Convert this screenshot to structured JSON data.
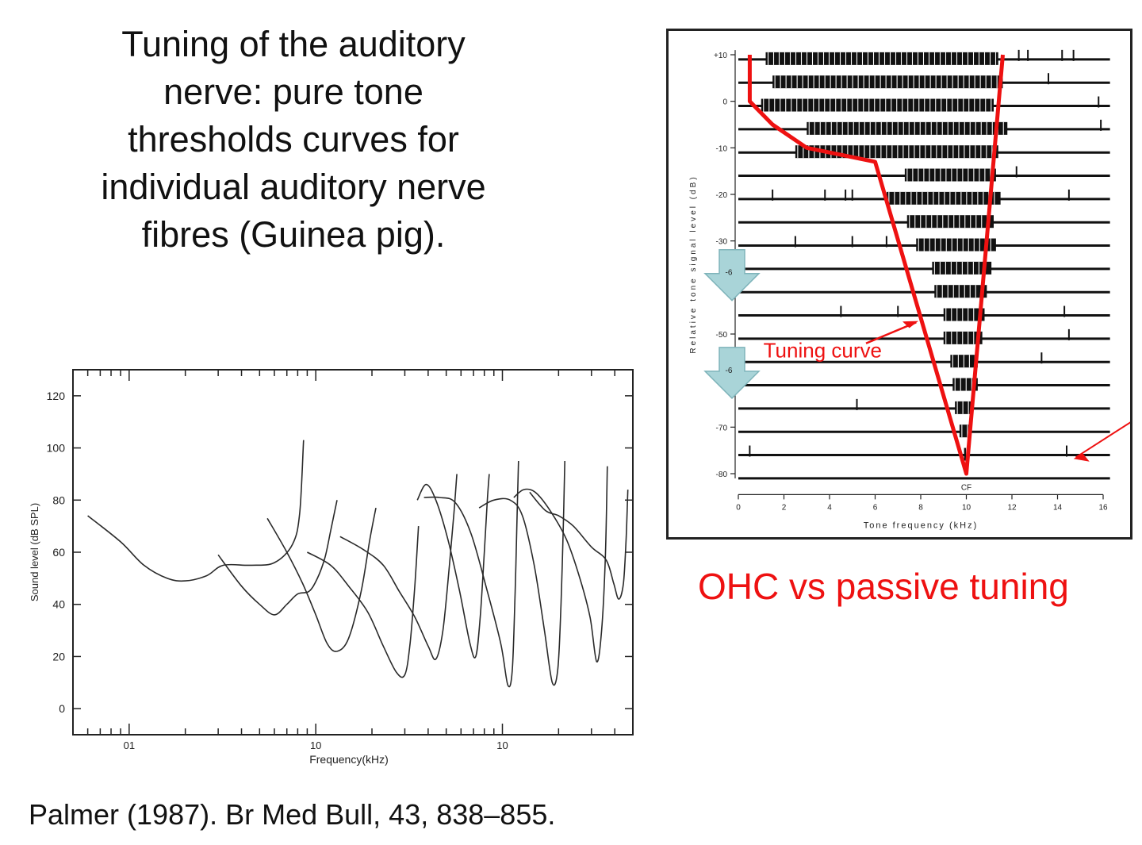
{
  "title_lines": [
    "Tuning of the auditory",
    "nerve: pure tone",
    "thresholds curves for",
    "individual auditory nerve",
    "fibres (Guinea pig)."
  ],
  "citation": "Palmer (1987). Br Med Bull, 43, 838–855.",
  "caption": "OHC vs passive tuning",
  "colors": {
    "accent": "#ee1111",
    "arrow_fill": "#a9d4d8",
    "arrow_stroke": "#7fb4ba",
    "ink": "#222222"
  },
  "chart_data": [
    {
      "type": "line",
      "xlabel": "Frequency(kHz)",
      "ylabel": "Sound level (dB SPL)",
      "xscale": "log",
      "xlim": [
        0.05,
        50
      ],
      "ylim": [
        -10,
        130
      ],
      "yticks": [
        0,
        20,
        40,
        60,
        80,
        100,
        120
      ],
      "xtick_labels": [
        {
          "value": 0.1,
          "label": "01"
        },
        {
          "value": 1,
          "label": "10"
        },
        {
          "value": 10,
          "label": "10"
        }
      ],
      "series": [
        {
          "points": [
            [
              0.06,
              74
            ],
            [
              0.09,
              64
            ],
            [
              0.12,
              55
            ],
            [
              0.16,
              50
            ],
            [
              0.2,
              49
            ],
            [
              0.26,
              51
            ],
            [
              0.32,
              55
            ],
            [
              0.45,
              55
            ],
            [
              0.6,
              56
            ],
            [
              0.75,
              63
            ],
            [
              0.82,
              75
            ],
            [
              0.86,
              103
            ]
          ]
        },
        {
          "points": [
            [
              0.3,
              59
            ],
            [
              0.4,
              47
            ],
            [
              0.5,
              40
            ],
            [
              0.6,
              36
            ],
            [
              0.7,
              40
            ],
            [
              0.8,
              44
            ],
            [
              0.92,
              45
            ],
            [
              1.02,
              50
            ],
            [
              1.12,
              58
            ],
            [
              1.2,
              68
            ],
            [
              1.3,
              80
            ]
          ]
        },
        {
          "points": [
            [
              0.55,
              73
            ],
            [
              0.7,
              60
            ],
            [
              0.85,
              48
            ],
            [
              1.0,
              36
            ],
            [
              1.15,
              25
            ],
            [
              1.3,
              22
            ],
            [
              1.5,
              27
            ],
            [
              1.75,
              45
            ],
            [
              1.95,
              65
            ],
            [
              2.1,
              77
            ]
          ]
        },
        {
          "points": [
            [
              0.9,
              60
            ],
            [
              1.2,
              55
            ],
            [
              1.5,
              47
            ],
            [
              1.9,
              37
            ],
            [
              2.3,
              24
            ],
            [
              2.7,
              14
            ],
            [
              3.0,
              13
            ],
            [
              3.2,
              25
            ],
            [
              3.4,
              48
            ],
            [
              3.55,
              70
            ]
          ]
        },
        {
          "points": [
            [
              1.35,
              66
            ],
            [
              1.8,
              61
            ],
            [
              2.3,
              55
            ],
            [
              2.8,
              45
            ],
            [
              3.4,
              35
            ],
            [
              4.0,
              24
            ],
            [
              4.4,
              19
            ],
            [
              4.8,
              30
            ],
            [
              5.2,
              55
            ],
            [
              5.5,
              75
            ],
            [
              5.7,
              90
            ]
          ]
        },
        {
          "points": [
            [
              3.5,
              80
            ],
            [
              3.9,
              86
            ],
            [
              4.4,
              80
            ],
            [
              5.1,
              65
            ],
            [
              5.9,
              45
            ],
            [
              6.7,
              25
            ],
            [
              7.2,
              20
            ],
            [
              7.6,
              35
            ],
            [
              8.0,
              60
            ],
            [
              8.3,
              80
            ],
            [
              8.5,
              90
            ]
          ]
        },
        {
          "points": [
            [
              3.8,
              81
            ],
            [
              4.6,
              81
            ],
            [
              5.6,
              79
            ],
            [
              6.8,
              67
            ],
            [
              8.3,
              45
            ],
            [
              9.8,
              25
            ],
            [
              10.7,
              9
            ],
            [
              11.3,
              15
            ],
            [
              11.7,
              45
            ],
            [
              12.0,
              75
            ],
            [
              12.2,
              95
            ]
          ]
        },
        {
          "points": [
            [
              7.5,
              77
            ],
            [
              9.0,
              80
            ],
            [
              11,
              80
            ],
            [
              12.8,
              74
            ],
            [
              14.8,
              55
            ],
            [
              16.8,
              30
            ],
            [
              18.5,
              10
            ],
            [
              19.8,
              15
            ],
            [
              20.6,
              40
            ],
            [
              21.2,
              70
            ],
            [
              21.6,
              95
            ]
          ]
        },
        {
          "points": [
            [
              11.5,
              81
            ],
            [
              13,
              84
            ],
            [
              15,
              83
            ],
            [
              18,
              76
            ],
            [
              22,
              65
            ],
            [
              26,
              50
            ],
            [
              29.5,
              35
            ],
            [
              32,
              18
            ],
            [
              34,
              30
            ],
            [
              35.6,
              58
            ],
            [
              36.5,
              93
            ]
          ]
        },
        {
          "points": [
            [
              14,
              83
            ],
            [
              17,
              76
            ],
            [
              20,
              74
            ],
            [
              24,
              70
            ],
            [
              30,
              62
            ],
            [
              36,
              57
            ],
            [
              39.5,
              48
            ],
            [
              42,
              42
            ],
            [
              44.5,
              48
            ],
            [
              46,
              65
            ],
            [
              47,
              84
            ]
          ]
        }
      ]
    },
    {
      "type": "scatter",
      "xlabel": "Tone frequency (kHz)",
      "ylabel": "Relative tone signal level (dB)",
      "xlim": [
        0,
        16
      ],
      "ylim": [
        -80,
        10
      ],
      "xticks": [
        0,
        2,
        4,
        6,
        8,
        10,
        12,
        14,
        16
      ],
      "ytick_labels": [
        {
          "value": 10,
          "label": "+10"
        },
        {
          "value": 0,
          "label": "0"
        },
        {
          "value": -10,
          "label": "-10"
        },
        {
          "value": -20,
          "label": "-20"
        },
        {
          "value": -30,
          "label": "-30"
        },
        {
          "value": -50,
          "label": "-50"
        },
        {
          "value": -70,
          "label": "-70"
        },
        {
          "value": -80,
          "label": "-80"
        }
      ],
      "arrow_labels": [
        "-6",
        "-6"
      ],
      "cf_label": "CF",
      "cf_khz": 10,
      "annotation": "Tuning curve",
      "tuning_curve": [
        [
          0.5,
          10
        ],
        [
          0.5,
          0
        ],
        [
          1.5,
          -5
        ],
        [
          3.0,
          -10
        ],
        [
          6.0,
          -13
        ],
        [
          10.0,
          -80
        ],
        [
          11.6,
          10
        ]
      ],
      "response_rows": [
        {
          "level": 9,
          "dense": [
            [
              1.2,
              11.4
            ]
          ],
          "spikes": [
            12.3,
            12.7,
            14.2,
            14.7
          ]
        },
        {
          "level": 4,
          "dense": [
            [
              1.5,
              11.6
            ]
          ],
          "spikes": [
            13.6
          ]
        },
        {
          "level": -1,
          "dense": [
            [
              1.0,
              11.2
            ]
          ],
          "spikes": [
            15.8
          ]
        },
        {
          "level": -6,
          "dense": [
            [
              3.0,
              11.8
            ]
          ],
          "spikes": [
            15.9
          ]
        },
        {
          "level": -11,
          "dense": [
            [
              2.5,
              11.4
            ]
          ],
          "spikes": []
        },
        {
          "level": -16,
          "dense": [
            [
              7.3,
              11.3
            ]
          ],
          "spikes": [
            12.2
          ]
        },
        {
          "level": -21,
          "dense": [
            [
              6.5,
              11.5
            ]
          ],
          "spikes": [
            1.5,
            3.8,
            4.7,
            5.0,
            14.5
          ]
        },
        {
          "level": -26,
          "dense": [
            [
              7.4,
              11.2
            ]
          ],
          "spikes": []
        },
        {
          "level": -31,
          "dense": [
            [
              7.8,
              11.3
            ]
          ],
          "spikes": [
            2.5,
            5.0,
            6.5
          ]
        },
        {
          "level": -36,
          "dense": [
            [
              8.5,
              11.1
            ]
          ],
          "spikes": []
        },
        {
          "level": -41,
          "dense": [
            [
              8.6,
              10.9
            ]
          ],
          "spikes": []
        },
        {
          "level": -46,
          "dense": [
            [
              9.0,
              10.8
            ]
          ],
          "spikes": [
            4.5,
            7.0,
            14.3
          ]
        },
        {
          "level": -51,
          "dense": [
            [
              9.0,
              10.7
            ]
          ],
          "spikes": [
            14.5
          ]
        },
        {
          "level": -56,
          "dense": [
            [
              9.3,
              10.5
            ]
          ],
          "spikes": [
            13.3
          ]
        },
        {
          "level": -61,
          "dense": [
            [
              9.4,
              10.5
            ]
          ],
          "spikes": []
        },
        {
          "level": -66,
          "dense": [
            [
              9.5,
              10.3
            ]
          ],
          "spikes": [
            5.2
          ]
        },
        {
          "level": -71,
          "dense": [
            [
              9.7,
              10.2
            ]
          ],
          "spikes": []
        },
        {
          "level": -76,
          "dense": [
            [
              9.9,
              10.1
            ]
          ],
          "spikes": [
            0.5,
            14.4
          ]
        },
        {
          "level": -81,
          "dense": [],
          "spikes": []
        }
      ]
    }
  ]
}
